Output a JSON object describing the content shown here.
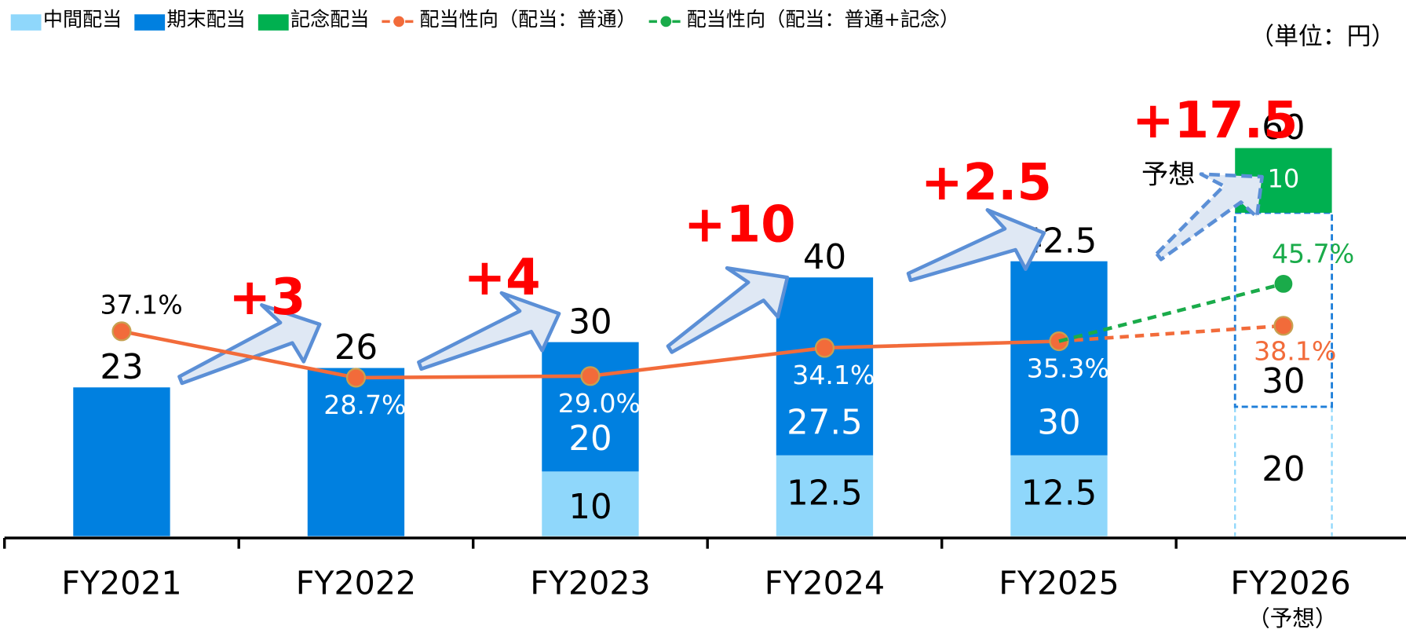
{
  "chart_data": {
    "type": "bar",
    "unit_label": "（単位：円）",
    "categories": [
      "FY2021",
      "FY2022",
      "FY2023",
      "FY2024",
      "FY2025",
      "FY2026"
    ],
    "category_note": "（予想）",
    "forecast_label": "予想",
    "dashed_last_category": true,
    "ylim": [
      0,
      70
    ],
    "y2lim": [
      0,
      82
    ],
    "stacked": true,
    "series": [
      {
        "name": "中間配当",
        "color": "#8fd7fb",
        "values": [
          null,
          null,
          10,
          12.5,
          12.5,
          20
        ],
        "inner_labels": true
      },
      {
        "name": "期末配当",
        "color": "#0080e0",
        "values": [
          23,
          26,
          20,
          27.5,
          30,
          30
        ],
        "inner_labels": [
          false,
          false,
          true,
          true,
          true,
          true
        ]
      },
      {
        "name": "記念配当",
        "color": "#00b050",
        "values": [
          null,
          null,
          null,
          null,
          null,
          10
        ],
        "inner_labels": true
      },
      {
        "name": "配当性向（配当：普通）",
        "type": "line",
        "axis": "y2",
        "color": "#f26b3a",
        "values": [
          37.1,
          28.7,
          29.0,
          34.1,
          35.3,
          38.1
        ],
        "value_labels": [
          "37.1%",
          "28.7%",
          "29.0%",
          "34.1%",
          "35.3%",
          "38.1%"
        ]
      },
      {
        "name": "配当性向（配当：普通+記念）",
        "type": "line",
        "axis": "y2",
        "color": "#1aab4a",
        "values": [
          null,
          null,
          null,
          null,
          35.3,
          45.7
        ],
        "value_labels": [
          null,
          null,
          null,
          null,
          null,
          "45.7%"
        ]
      }
    ],
    "totals": [
      23,
      26,
      30,
      40,
      42.5,
      60
    ],
    "annotations": [
      "+3",
      "+4",
      "+10",
      "+2.5",
      "+17.5"
    ]
  }
}
